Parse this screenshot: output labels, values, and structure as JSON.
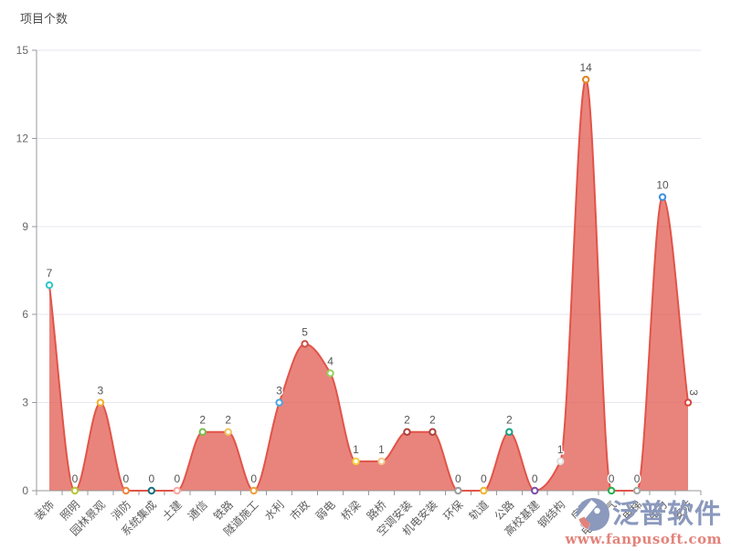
{
  "chart_data": {
    "type": "area",
    "title": "",
    "ylabel": "项目个数",
    "xlabel": "",
    "categories": [
      "装饰",
      "照明",
      "园林景观",
      "消防",
      "系统集成",
      "土建",
      "通信",
      "铁路",
      "隧道施工",
      "水利",
      "市政",
      "弱电",
      "桥梁",
      "路桥",
      "空调安装",
      "机电安装",
      "环保",
      "轨道",
      "公路",
      "高校基建",
      "钢结构",
      "房建",
      "电子电气",
      "电梯",
      "电力",
      "安防"
    ],
    "values": [
      7,
      0,
      3,
      0,
      0,
      0,
      2,
      2,
      0,
      3,
      5,
      4,
      1,
      1,
      2,
      2,
      0,
      0,
      2,
      0,
      1,
      14,
      0,
      0,
      10,
      3
    ],
    "point_colors": [
      "#2ec7c9",
      "#b6c83a",
      "#f2af2e",
      "#ee8542",
      "#17707e",
      "#f9a99f",
      "#77bd4a",
      "#eec35c",
      "#eea03c",
      "#4aa4e4",
      "#cc4e42",
      "#95d05c",
      "#f5d03d",
      "#f4c689",
      "#ad3f38",
      "#ad3f38",
      "#9c9c9c",
      "#eeb42e",
      "#16a085",
      "#7a4fa8",
      "#e0e0e0",
      "#e2841f",
      "#27ae52",
      "#a6a6a6",
      "#3a8ede",
      "#d8453c"
    ],
    "ylim": [
      0,
      15
    ],
    "yticks": [
      0,
      3,
      6,
      9,
      12,
      15
    ],
    "grid": true,
    "smooth": true,
    "legend_position": "none",
    "line_color": "#e15449",
    "area_opacity": 0.72,
    "value_label_color": "#555555",
    "axis_color": "#999999",
    "gridline_color": "#e4e7f0",
    "tick_label_color": "#5d5d5d"
  },
  "watermark": {
    "brand": "泛普软件",
    "url": "www.fanpusoft.com",
    "brand_color": "#8b99bd",
    "url_color": "#e2837a",
    "logo_blue": "#8b99bd",
    "logo_red": "#e2837a"
  }
}
